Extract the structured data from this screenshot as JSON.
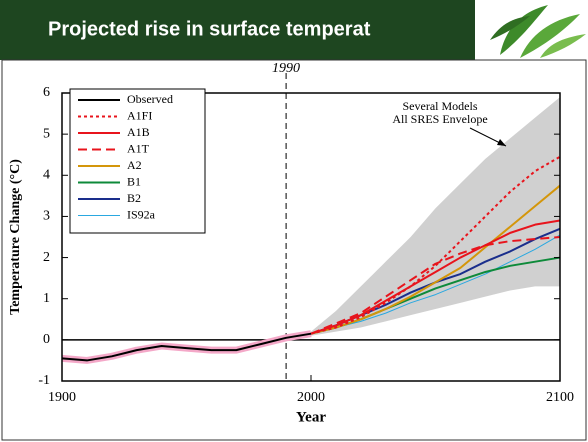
{
  "chart_data": {
    "type": "line",
    "title": "Projected rise in surface temperat",
    "annotation_year": "1990",
    "annotation": [
      "Several Models",
      "All SRES Envelope"
    ],
    "xlabel": "Year",
    "ylabel": "Temperature Change (°C)",
    "x": [
      1900,
      1910,
      1920,
      1930,
      1940,
      1950,
      1960,
      1970,
      1980,
      1990,
      2000,
      2010,
      2020,
      2030,
      2040,
      2050,
      2060,
      2070,
      2080,
      2090,
      2100
    ],
    "xlim": [
      1900,
      2100
    ],
    "xticks": [
      1900,
      2000,
      2100
    ],
    "ylim": [
      -1,
      6
    ],
    "yticks": [
      -1,
      0,
      1,
      2,
      3,
      4,
      5,
      6
    ],
    "marker_x": 1990,
    "legend": "upper left",
    "envelope": {
      "color": "#d0d0d0",
      "upper": [
        null,
        null,
        null,
        null,
        null,
        null,
        null,
        null,
        null,
        null,
        0.2,
        0.7,
        1.3,
        1.9,
        2.5,
        3.2,
        3.8,
        4.4,
        4.9,
        5.4,
        5.9
      ],
      "lower": [
        null,
        null,
        null,
        null,
        null,
        null,
        null,
        null,
        null,
        null,
        0.1,
        0.2,
        0.3,
        0.45,
        0.6,
        0.75,
        0.9,
        1.05,
        1.2,
        1.3,
        1.3
      ]
    },
    "series": [
      {
        "name": "Observed",
        "color": "#000000",
        "style": "solid",
        "width": 2,
        "band_color": "#f4a8c8",
        "values": [
          -0.45,
          -0.5,
          -0.4,
          -0.25,
          -0.15,
          -0.2,
          -0.25,
          -0.25,
          -0.1,
          0.05,
          0.15,
          null,
          null,
          null,
          null,
          null,
          null,
          null,
          null,
          null,
          null
        ]
      },
      {
        "name": "A1FI",
        "color": "#e8141c",
        "style": "dotted",
        "width": 2,
        "values": [
          null,
          null,
          null,
          null,
          null,
          null,
          null,
          null,
          null,
          null,
          0.15,
          0.3,
          0.55,
          0.9,
          1.3,
          1.8,
          2.4,
          3.0,
          3.6,
          4.1,
          4.45
        ]
      },
      {
        "name": "A1B",
        "color": "#e8141c",
        "style": "solid",
        "width": 2,
        "values": [
          null,
          null,
          null,
          null,
          null,
          null,
          null,
          null,
          null,
          null,
          0.15,
          0.35,
          0.6,
          0.95,
          1.3,
          1.65,
          2.0,
          2.3,
          2.6,
          2.8,
          2.9
        ]
      },
      {
        "name": "A1T",
        "color": "#e8141c",
        "style": "dashed",
        "width": 2,
        "values": [
          null,
          null,
          null,
          null,
          null,
          null,
          null,
          null,
          null,
          null,
          0.15,
          0.4,
          0.65,
          1.05,
          1.45,
          1.85,
          2.1,
          2.3,
          2.4,
          2.45,
          2.5
        ]
      },
      {
        "name": "A2",
        "color": "#d4960a",
        "style": "solid",
        "width": 2,
        "values": [
          null,
          null,
          null,
          null,
          null,
          null,
          null,
          null,
          null,
          null,
          0.15,
          0.3,
          0.5,
          0.75,
          1.05,
          1.4,
          1.75,
          2.25,
          2.75,
          3.25,
          3.75
        ]
      },
      {
        "name": "B1",
        "color": "#0e8a3a",
        "style": "solid",
        "width": 2,
        "values": [
          null,
          null,
          null,
          null,
          null,
          null,
          null,
          null,
          null,
          null,
          0.15,
          0.3,
          0.5,
          0.75,
          1.0,
          1.25,
          1.45,
          1.65,
          1.8,
          1.9,
          2.0
        ]
      },
      {
        "name": "B2",
        "color": "#1a2e8c",
        "style": "solid",
        "width": 2,
        "values": [
          null,
          null,
          null,
          null,
          null,
          null,
          null,
          null,
          null,
          null,
          0.15,
          0.35,
          0.6,
          0.85,
          1.15,
          1.4,
          1.6,
          1.9,
          2.15,
          2.45,
          2.7
        ]
      },
      {
        "name": "IS92a",
        "color": "#2aa8e0",
        "style": "solid",
        "width": 1,
        "values": [
          null,
          null,
          null,
          null,
          null,
          null,
          null,
          null,
          null,
          null,
          0.15,
          0.3,
          0.45,
          0.65,
          0.9,
          1.1,
          1.35,
          1.6,
          1.9,
          2.2,
          2.55
        ]
      }
    ]
  }
}
